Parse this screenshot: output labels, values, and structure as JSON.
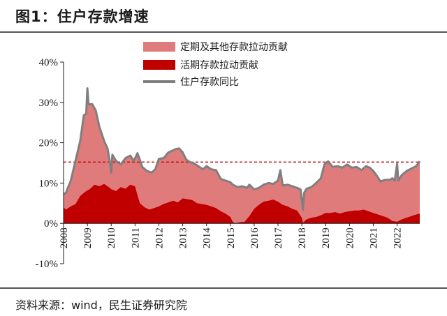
{
  "figure": {
    "title": "图1：住户存款增速",
    "source": "资料来源：wind，民生证券研究院"
  },
  "chart_data": {
    "type": "area",
    "x_ticks": [
      "2008",
      "2009",
      "2010",
      "2011",
      "2012",
      "2013",
      "2014",
      "2015",
      "2016",
      "2017",
      "2018",
      "2019",
      "2020",
      "2021",
      "2022"
    ],
    "y_ticks": [
      "40%",
      "30%",
      "20%",
      "10%",
      "0%",
      "-10%"
    ],
    "ylim": [
      -10,
      40
    ],
    "reference_line": 15.2,
    "colors": {
      "other": "#e07b7b",
      "demand": "#c00000",
      "total": "#7f7f7f",
      "reference": "#c00000"
    },
    "series": [
      {
        "name": "定期及其他存款拉动贡献",
        "type": "stacked-area",
        "key": "other"
      },
      {
        "name": "活期存款拉动贡献",
        "type": "area",
        "key": "demand",
        "points": [
          [
            2008.0,
            4.0
          ],
          [
            2008.1,
            3.4
          ],
          [
            2008.3,
            4.2
          ],
          [
            2008.5,
            4.8
          ],
          [
            2008.7,
            6.8
          ],
          [
            2008.9,
            7.8
          ],
          [
            2009.1,
            8.5
          ],
          [
            2009.3,
            9.6
          ],
          [
            2009.5,
            9.2
          ],
          [
            2009.7,
            9.8
          ],
          [
            2009.9,
            9.0
          ],
          [
            2010.0,
            8.5
          ],
          [
            2010.2,
            8.0
          ],
          [
            2010.4,
            9.0
          ],
          [
            2010.6,
            8.6
          ],
          [
            2010.8,
            9.6
          ],
          [
            2011.0,
            9.2
          ],
          [
            2011.1,
            7.0
          ],
          [
            2011.2,
            5.0
          ],
          [
            2011.4,
            4.0
          ],
          [
            2011.6,
            3.4
          ],
          [
            2011.8,
            3.8
          ],
          [
            2012.0,
            4.2
          ],
          [
            2012.2,
            4.8
          ],
          [
            2012.4,
            5.2
          ],
          [
            2012.6,
            5.6
          ],
          [
            2012.8,
            5.2
          ],
          [
            2013.0,
            6.2
          ],
          [
            2013.2,
            6.0
          ],
          [
            2013.4,
            5.8
          ],
          [
            2013.6,
            5.0
          ],
          [
            2013.8,
            4.8
          ],
          [
            2014.0,
            4.6
          ],
          [
            2014.2,
            4.2
          ],
          [
            2014.4,
            3.8
          ],
          [
            2014.6,
            3.0
          ],
          [
            2014.8,
            2.4
          ],
          [
            2015.0,
            1.6
          ],
          [
            2015.1,
            0.4
          ],
          [
            2015.2,
            0.0
          ],
          [
            2015.4,
            0.3
          ],
          [
            2015.6,
            0.4
          ],
          [
            2015.8,
            1.8
          ],
          [
            2016.0,
            3.6
          ],
          [
            2016.2,
            4.6
          ],
          [
            2016.4,
            5.4
          ],
          [
            2016.6,
            5.6
          ],
          [
            2016.8,
            5.9
          ],
          [
            2017.0,
            5.4
          ],
          [
            2017.2,
            4.6
          ],
          [
            2017.4,
            4.2
          ],
          [
            2017.6,
            3.6
          ],
          [
            2017.8,
            3.2
          ],
          [
            2018.0,
            1.4
          ],
          [
            2018.05,
            0.2
          ],
          [
            2018.2,
            1.0
          ],
          [
            2018.4,
            1.4
          ],
          [
            2018.6,
            1.6
          ],
          [
            2018.8,
            2.0
          ],
          [
            2019.0,
            2.6
          ],
          [
            2019.2,
            2.6
          ],
          [
            2019.4,
            2.8
          ],
          [
            2019.6,
            2.4
          ],
          [
            2019.8,
            2.8
          ],
          [
            2020.0,
            3.0
          ],
          [
            2020.2,
            3.2
          ],
          [
            2020.4,
            3.2
          ],
          [
            2020.6,
            3.4
          ],
          [
            2020.8,
            3.0
          ],
          [
            2021.0,
            2.6
          ],
          [
            2021.2,
            2.2
          ],
          [
            2021.4,
            1.8
          ],
          [
            2021.6,
            1.4
          ],
          [
            2021.8,
            0.6
          ],
          [
            2022.0,
            0.4
          ],
          [
            2022.2,
            1.0
          ],
          [
            2022.4,
            1.4
          ],
          [
            2022.6,
            1.8
          ],
          [
            2022.8,
            2.2
          ],
          [
            2022.95,
            2.4
          ]
        ]
      },
      {
        "name": "住户存款同比",
        "type": "line",
        "key": "total",
        "points": [
          [
            2008.0,
            7.2
          ],
          [
            2008.1,
            7.6
          ],
          [
            2008.3,
            10.5
          ],
          [
            2008.5,
            15.5
          ],
          [
            2008.7,
            20.5
          ],
          [
            2008.85,
            26.8
          ],
          [
            2008.95,
            27.2
          ],
          [
            2009.0,
            33.5
          ],
          [
            2009.05,
            29.5
          ],
          [
            2009.2,
            29.6
          ],
          [
            2009.35,
            28.0
          ],
          [
            2009.5,
            24.0
          ],
          [
            2009.7,
            20.5
          ],
          [
            2009.85,
            18.5
          ],
          [
            2009.95,
            15.0
          ],
          [
            2010.0,
            12.6
          ],
          [
            2010.05,
            17.0
          ],
          [
            2010.2,
            15.5
          ],
          [
            2010.4,
            14.6
          ],
          [
            2010.6,
            16.2
          ],
          [
            2010.8,
            16.8
          ],
          [
            2010.95,
            15.5
          ],
          [
            2011.1,
            17.4
          ],
          [
            2011.2,
            15.8
          ],
          [
            2011.3,
            14.0
          ],
          [
            2011.5,
            13.0
          ],
          [
            2011.7,
            12.6
          ],
          [
            2011.85,
            13.4
          ],
          [
            2012.0,
            16.0
          ],
          [
            2012.2,
            16.2
          ],
          [
            2012.4,
            17.6
          ],
          [
            2012.55,
            18.0
          ],
          [
            2012.7,
            18.4
          ],
          [
            2012.85,
            18.6
          ],
          [
            2013.0,
            17.6
          ],
          [
            2013.15,
            15.8
          ],
          [
            2013.3,
            15.2
          ],
          [
            2013.5,
            14.8
          ],
          [
            2013.7,
            14.0
          ],
          [
            2013.85,
            13.4
          ],
          [
            2014.0,
            14.2
          ],
          [
            2014.2,
            13.4
          ],
          [
            2014.4,
            13.2
          ],
          [
            2014.6,
            11.0
          ],
          [
            2014.8,
            10.6
          ],
          [
            2015.0,
            10.2
          ],
          [
            2015.1,
            9.6
          ],
          [
            2015.3,
            9.0
          ],
          [
            2015.5,
            9.2
          ],
          [
            2015.7,
            8.8
          ],
          [
            2015.8,
            9.6
          ],
          [
            2016.0,
            8.4
          ],
          [
            2016.2,
            8.8
          ],
          [
            2016.4,
            9.6
          ],
          [
            2016.6,
            10.0
          ],
          [
            2016.8,
            9.8
          ],
          [
            2017.0,
            10.6
          ],
          [
            2017.1,
            13.2
          ],
          [
            2017.2,
            9.4
          ],
          [
            2017.4,
            9.6
          ],
          [
            2017.6,
            9.2
          ],
          [
            2017.8,
            8.8
          ],
          [
            2017.95,
            8.4
          ],
          [
            2018.05,
            3.4
          ],
          [
            2018.1,
            7.6
          ],
          [
            2018.2,
            8.6
          ],
          [
            2018.4,
            9.0
          ],
          [
            2018.6,
            10.0
          ],
          [
            2018.8,
            11.2
          ],
          [
            2018.95,
            14.6
          ],
          [
            2019.1,
            15.4
          ],
          [
            2019.3,
            14.0
          ],
          [
            2019.5,
            14.2
          ],
          [
            2019.7,
            13.8
          ],
          [
            2019.9,
            14.6
          ],
          [
            2020.1,
            13.8
          ],
          [
            2020.3,
            14.0
          ],
          [
            2020.5,
            13.2
          ],
          [
            2020.7,
            14.2
          ],
          [
            2020.85,
            13.8
          ],
          [
            2021.0,
            13.0
          ],
          [
            2021.15,
            11.8
          ],
          [
            2021.3,
            10.4
          ],
          [
            2021.5,
            10.8
          ],
          [
            2021.7,
            10.8
          ],
          [
            2021.8,
            11.2
          ],
          [
            2021.9,
            10.6
          ],
          [
            2022.0,
            14.8
          ],
          [
            2022.05,
            10.6
          ],
          [
            2022.2,
            12.0
          ],
          [
            2022.4,
            13.0
          ],
          [
            2022.6,
            13.6
          ],
          [
            2022.8,
            14.2
          ],
          [
            2022.95,
            15.4
          ]
        ]
      }
    ],
    "grid": false,
    "legend_position": "top-center"
  }
}
